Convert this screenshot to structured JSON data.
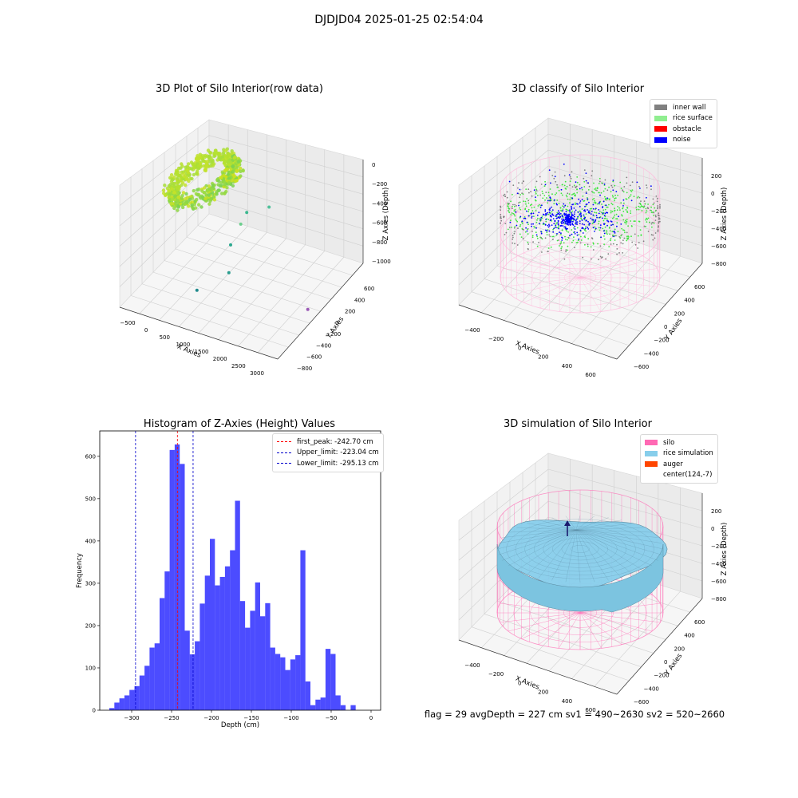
{
  "figure": {
    "suptitle": "DJDJD04 2025-01-25 02:54:04",
    "footer": "flag = 29  avgDepth = 227 cm  sv1 = 490~2630  sv2 = 520~2660"
  },
  "chart_data": [
    {
      "type": "scatter",
      "title": "3D Plot of Silo Interior(row data)",
      "xlabel": "X Axies",
      "ylabel": "Y Axies",
      "zlabel": "Z Axies (Depth)",
      "x_ticks": [
        "−500",
        "0",
        "500",
        "1000",
        "1500",
        "2000",
        "2500",
        "3000"
      ],
      "y_ticks": [
        "600",
        "400",
        "200",
        "0",
        "−200",
        "−400",
        "−600",
        "−800"
      ],
      "z_ticks": [
        "0",
        "−200",
        "−400",
        "−600",
        "−800",
        "−1000"
      ],
      "xlim": [
        -600,
        3200
      ],
      "ylim": [
        -800,
        650
      ],
      "zlim": [
        -1100,
        50
      ],
      "outliers": [
        {
          "x": 1400,
          "y": 300,
          "z": -420,
          "color": "#4fc19a"
        },
        {
          "x": 1150,
          "y": 0,
          "z": -430,
          "color": "#6ccf8e"
        },
        {
          "x": 1000,
          "y": 200,
          "z": -470,
          "color": "#3cb88f"
        },
        {
          "x": 1050,
          "y": -100,
          "z": -620,
          "color": "#2ba88f"
        },
        {
          "x": 1300,
          "y": -300,
          "z": -760,
          "color": "#2a9d8f"
        },
        {
          "x": 600,
          "y": -350,
          "z": -1050,
          "color": "#1f8a8c"
        },
        {
          "x": 3000,
          "y": -150,
          "z": -1050,
          "color": "#9b59b6"
        }
      ]
    },
    {
      "type": "scatter",
      "title": "3D classify of Silo Interior",
      "xlabel": "X Axies",
      "ylabel": "Y Axies",
      "zlabel": "Z Axies (Depth)",
      "x_ticks": [
        "−400",
        "−200",
        "0",
        "200",
        "400",
        "600"
      ],
      "y_ticks": [
        "600",
        "400",
        "200",
        "0",
        "−200",
        "−400",
        "−600"
      ],
      "z_ticks": [
        "200",
        "0",
        "−200",
        "−400",
        "−600",
        "−800"
      ],
      "legend": [
        {
          "label": "inner wall",
          "color": "#808080"
        },
        {
          "label": "rice surface",
          "color": "#90ee90"
        },
        {
          "label": "obstacle",
          "color": "#ff0000"
        },
        {
          "label": "noise",
          "color": "#0000ff"
        }
      ]
    },
    {
      "type": "bar",
      "title": "Histogram of Z-Axies (Height) Values",
      "xlabel": "Depth (cm)",
      "ylabel": "Frequency",
      "xlim": [
        -340,
        12
      ],
      "ylim": [
        0,
        660
      ],
      "x_ticks": [
        -300,
        -250,
        -200,
        -150,
        -100,
        -50,
        0
      ],
      "y_ticks": [
        0,
        100,
        200,
        300,
        400,
        500,
        600
      ],
      "bin_start": -328,
      "bin_width": 6.3,
      "values": [
        5,
        18,
        28,
        35,
        48,
        57,
        82,
        105,
        148,
        158,
        265,
        328,
        615,
        628,
        582,
        188,
        132,
        163,
        252,
        318,
        405,
        295,
        315,
        340,
        378,
        495,
        258,
        195,
        235,
        302,
        222,
        253,
        148,
        133,
        125,
        95,
        120,
        130,
        378,
        68,
        12,
        25,
        30,
        145,
        133,
        35,
        12,
        0,
        12
      ],
      "color": "#0000ff",
      "lines": [
        {
          "label": "first_peak: -242.70 cm",
          "x": -242.7,
          "color": "#ff0000"
        },
        {
          "label": "Upper_limit: -223.04 cm",
          "x": -223.04,
          "color": "#0000cc"
        },
        {
          "label": "Lower_limit: -295.13 cm",
          "x": -295.13,
          "color": "#0000cc"
        }
      ]
    },
    {
      "type": "area",
      "title": "3D simulation of Silo Interior",
      "xlabel": "X Axies",
      "ylabel": "Y Axies",
      "zlabel": "Z Axies (Depth)",
      "x_ticks": [
        "−400",
        "−200",
        "0",
        "200",
        "400",
        "600"
      ],
      "y_ticks": [
        "600",
        "400",
        "200",
        "0",
        "−200",
        "−400",
        "−600"
      ],
      "z_ticks": [
        "200",
        "0",
        "−200",
        "−400",
        "−600",
        "−800"
      ],
      "legend": [
        {
          "label": "silo",
          "color": "#ff69b4"
        },
        {
          "label": "rice simulation",
          "color": "#87ceeb"
        },
        {
          "label": "auger",
          "color": "#ff4500"
        },
        {
          "label": "center(124,-7)",
          "color": ""
        }
      ]
    }
  ]
}
